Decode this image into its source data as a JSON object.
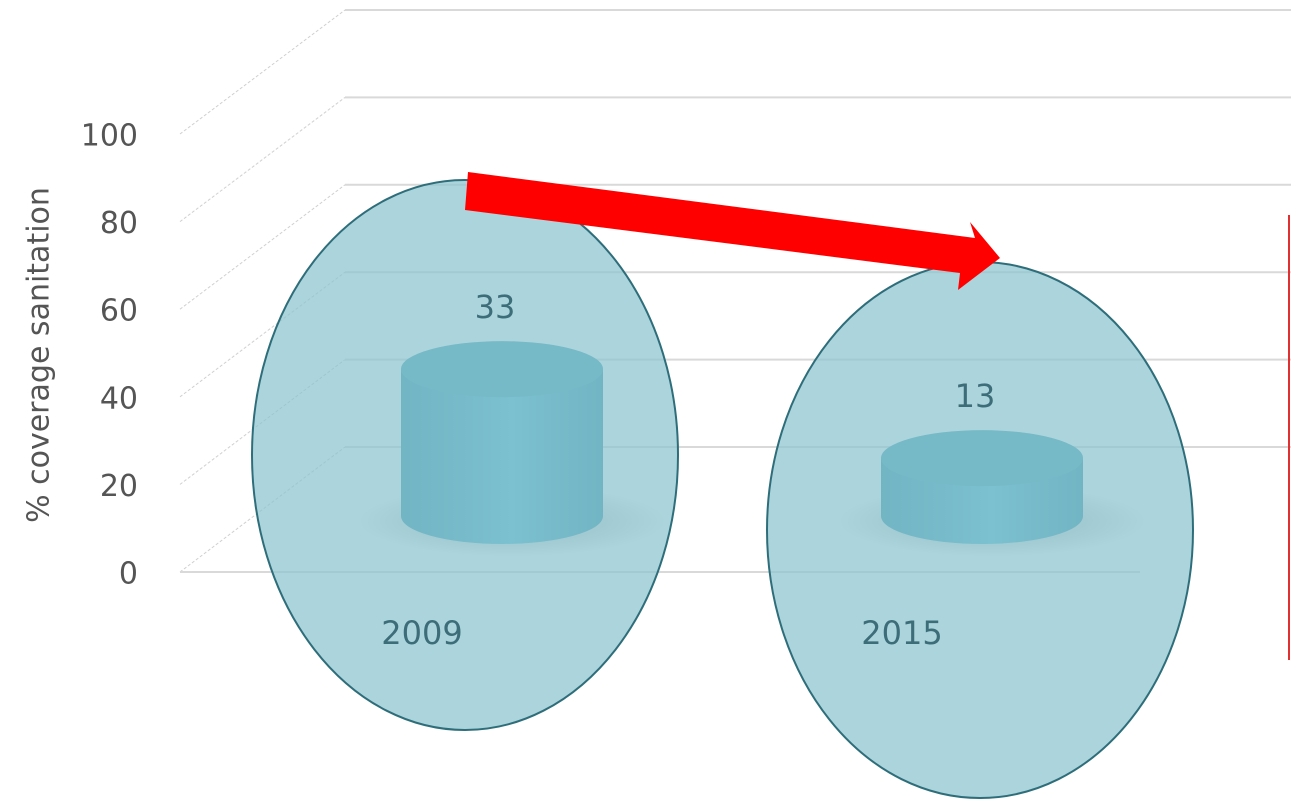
{
  "chart_data": {
    "type": "cylinder",
    "y_label": "% coverage sanitation",
    "categories": [
      "2009",
      "2015"
    ],
    "values": [
      33,
      13
    ],
    "color": "#4aaec4",
    "ylim": [
      0,
      100
    ],
    "yticks": [
      0,
      20,
      40,
      60,
      80,
      100
    ],
    "grid": true
  }
}
